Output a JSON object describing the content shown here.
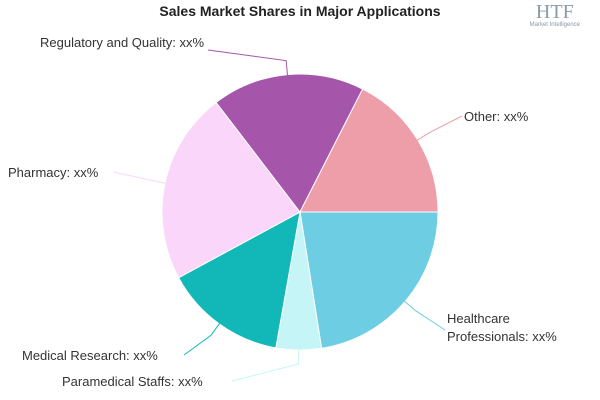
{
  "chart_data": {
    "type": "pie",
    "title": "Sales Market Shares in Major Applications",
    "categories": [
      "Healthcare Professionals",
      "Paramedical Staffs",
      "Medical Research",
      "Pharmacy",
      "Regulatory and Quality",
      "Other"
    ],
    "values": [
      22.5,
      5.3,
      14.3,
      22.5,
      17.9,
      17.5
    ],
    "value_labels": [
      "xx%",
      "xx%",
      "xx%",
      "xx%",
      "xx%",
      "xx%"
    ],
    "colors": [
      "#6ccde3",
      "#c5f5f7",
      "#12b8b8",
      "#fad6fa",
      "#a555aa",
      "#ee9ea8"
    ]
  },
  "logo": {
    "text": "HTF",
    "subtitle": "Market Intelligence"
  }
}
